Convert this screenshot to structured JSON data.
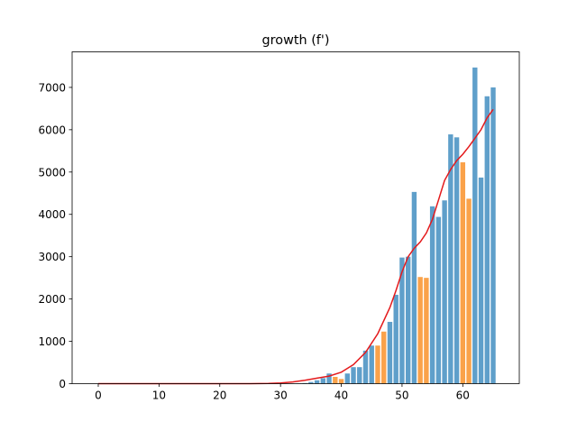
{
  "chart_data": {
    "type": "bar",
    "title": "growth (f')",
    "xlabel": "",
    "ylabel": "",
    "xlim": [
      -4.3,
      69.3
    ],
    "ylim": [
      0,
      7840
    ],
    "xticks": [
      0,
      10,
      20,
      30,
      40,
      50,
      60
    ],
    "yticks": [
      0,
      1000,
      2000,
      3000,
      4000,
      5000,
      6000,
      7000
    ],
    "grid": false,
    "legend": "none",
    "colors": {
      "weekday": "#5f9fca",
      "weekend": "#faa24a",
      "trend": "#e41a1c"
    },
    "x": [
      0,
      1,
      2,
      3,
      4,
      5,
      6,
      7,
      8,
      9,
      10,
      11,
      12,
      13,
      14,
      15,
      16,
      17,
      18,
      19,
      20,
      21,
      22,
      23,
      24,
      25,
      26,
      27,
      28,
      29,
      30,
      31,
      32,
      33,
      34,
      35,
      36,
      37,
      38,
      39,
      40,
      41,
      42,
      43,
      44,
      45,
      46,
      47,
      48,
      49,
      50,
      51,
      52,
      53,
      54,
      55,
      56,
      57,
      58,
      59,
      60,
      61,
      62,
      63,
      64,
      65
    ],
    "values": [
      0,
      0,
      0,
      0,
      0,
      0,
      0,
      0,
      0,
      0,
      0,
      0,
      0,
      0,
      0,
      0,
      0,
      0,
      0,
      0,
      0,
      0,
      0,
      0,
      0,
      0,
      0,
      0,
      0,
      0,
      0,
      0,
      0,
      5,
      15,
      40,
      80,
      130,
      240,
      160,
      110,
      240,
      390,
      390,
      780,
      900,
      900,
      1230,
      1460,
      2100,
      2980,
      3000,
      4530,
      2520,
      2500,
      4190,
      3940,
      4330,
      5890,
      5820,
      5230,
      4370,
      7470,
      4870,
      6790,
      7000
    ],
    "bar_color_group": [
      "weekday",
      "weekday",
      "weekday",
      "weekday",
      "weekday",
      "weekday",
      "weekday",
      "weekday",
      "weekday",
      "weekday",
      "weekday",
      "weekday",
      "weekday",
      "weekday",
      "weekday",
      "weekday",
      "weekday",
      "weekday",
      "weekday",
      "weekday",
      "weekday",
      "weekday",
      "weekday",
      "weekday",
      "weekday",
      "weekday",
      "weekday",
      "weekday",
      "weekday",
      "weekday",
      "weekday",
      "weekday",
      "weekday",
      "weekday",
      "weekday",
      "weekday",
      "weekday",
      "weekday",
      "weekday",
      "weekend",
      "weekend",
      "weekday",
      "weekday",
      "weekday",
      "weekday",
      "weekday",
      "weekend",
      "weekend",
      "weekday",
      "weekday",
      "weekday",
      "weekday",
      "weekday",
      "weekend",
      "weekend",
      "weekday",
      "weekday",
      "weekday",
      "weekday",
      "weekday",
      "weekend",
      "weekend",
      "weekday",
      "weekday",
      "weekday",
      "weekday"
    ],
    "trend": {
      "x": [
        0,
        5,
        10,
        15,
        20,
        25,
        28,
        30,
        32,
        34,
        36,
        38,
        40,
        42,
        44,
        46,
        48,
        49,
        50,
        51,
        52,
        53,
        54,
        55,
        56,
        57,
        58,
        59,
        60,
        61,
        62,
        63,
        64,
        65
      ],
      "y": [
        0,
        0,
        0,
        0,
        0,
        0,
        5,
        15,
        40,
        80,
        130,
        180,
        270,
        450,
        740,
        1180,
        1800,
        2200,
        2640,
        3000,
        3200,
        3350,
        3560,
        3880,
        4340,
        4800,
        5060,
        5270,
        5420,
        5600,
        5800,
        6000,
        6280,
        6480
      ]
    }
  }
}
